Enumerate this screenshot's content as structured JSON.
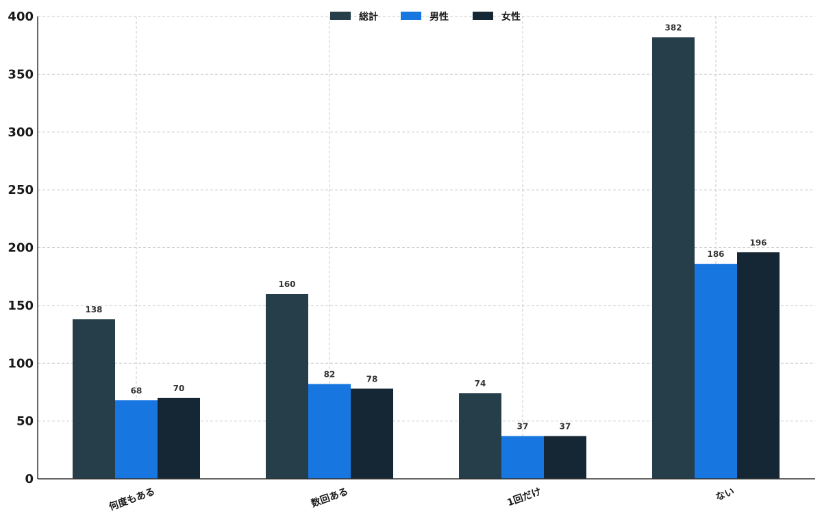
{
  "chart_data": {
    "type": "bar",
    "categories": [
      "何度もある",
      "数回ある",
      "1回だけ",
      "ない"
    ],
    "series": [
      {
        "name": "総計",
        "values": [
          138,
          160,
          74,
          382
        ],
        "color": "#263d4a"
      },
      {
        "name": "男性",
        "values": [
          68,
          82,
          37,
          186
        ],
        "color": "#1776e0"
      },
      {
        "name": "女性",
        "values": [
          70,
          78,
          37,
          196
        ],
        "color": "#152634"
      }
    ],
    "title": "",
    "xlabel": "",
    "ylabel": "",
    "ylim": [
      0,
      400
    ],
    "yticks": [
      0,
      50,
      100,
      150,
      200,
      250,
      300,
      350,
      400
    ],
    "grid": true,
    "legend_position": "top-center"
  }
}
